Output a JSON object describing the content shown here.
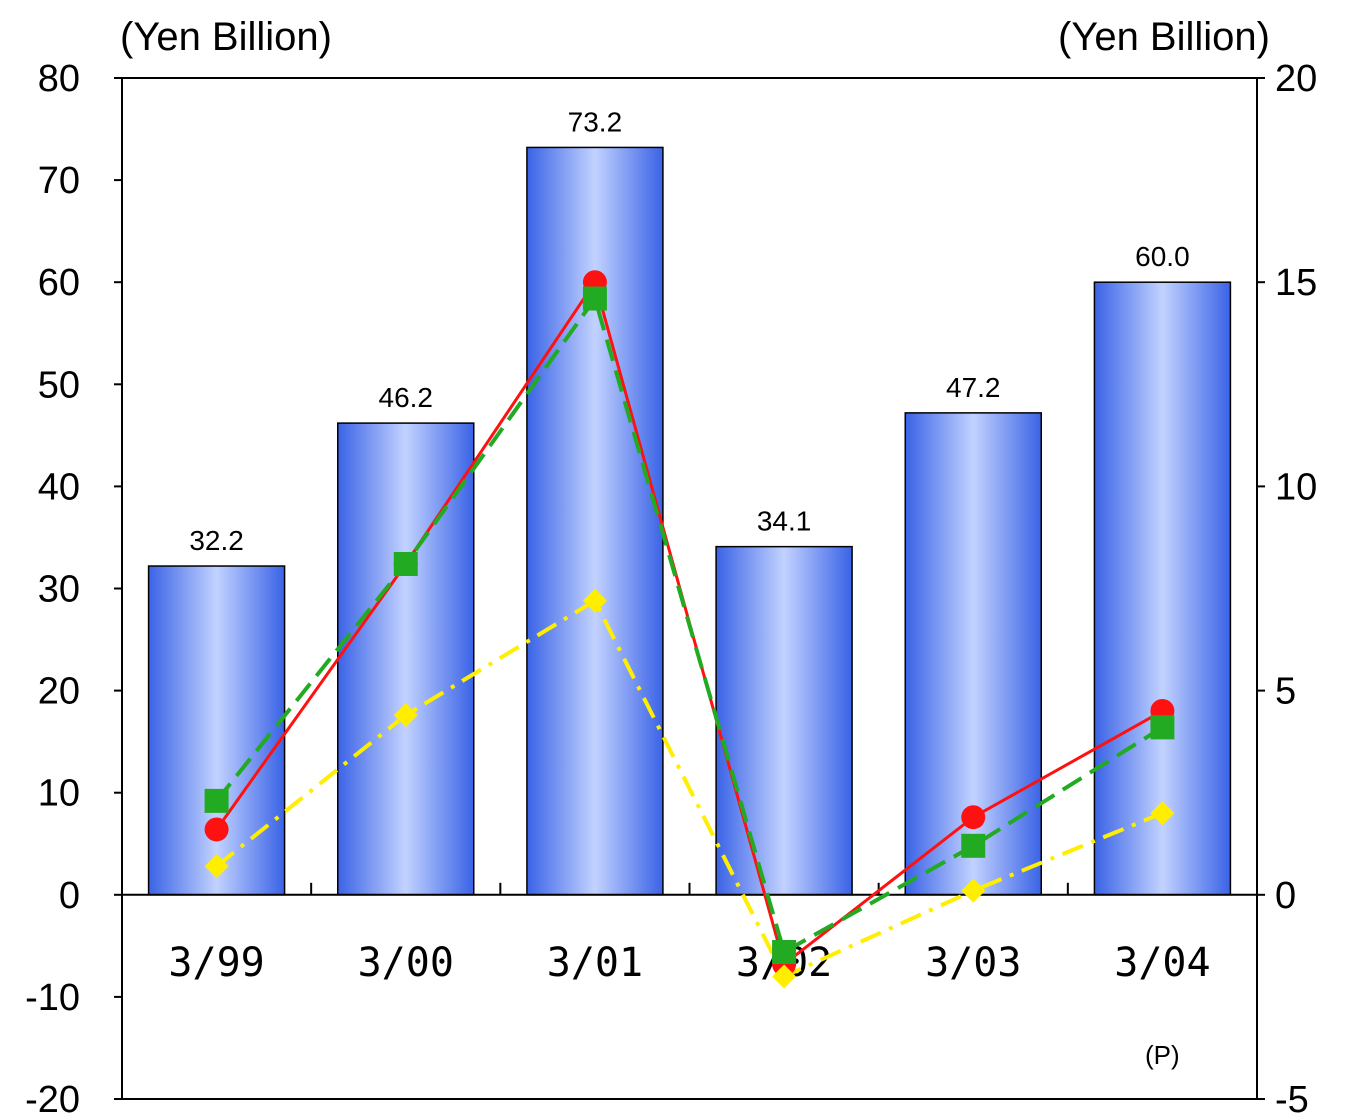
{
  "chart_data": {
    "type": "bar",
    "categories": [
      "3/99",
      "3/00",
      "3/01",
      "3/02",
      "3/03",
      "3/04"
    ],
    "left_axis": {
      "unit": "(Yen Billion)",
      "ylim": [
        -20,
        80
      ],
      "ticks": [
        "80",
        "70",
        "60",
        "50",
        "40",
        "30",
        "20",
        "10",
        "0",
        "-10",
        "-20"
      ]
    },
    "right_axis": {
      "unit": "(Yen Billion)",
      "ylim": [
        -5,
        20
      ],
      "ticks": [
        "20",
        "15",
        "10",
        "5",
        "0",
        "-5"
      ]
    },
    "bars": {
      "axis": "left",
      "values": [
        32.2,
        46.2,
        73.2,
        34.1,
        47.2,
        60.0
      ],
      "labels": [
        "32.2",
        "46.2",
        "73.2",
        "34.1",
        "47.2",
        "60.0"
      ],
      "color": "#3a63e6"
    },
    "lines": [
      {
        "axis": "right",
        "marker": "circle",
        "style": "solid",
        "color": "#ff1111",
        "values": [
          1.6,
          8.1,
          15.0,
          -1.7,
          1.9,
          4.5
        ]
      },
      {
        "axis": "right",
        "marker": "square",
        "style": "dashed",
        "color": "#22aa22",
        "values": [
          2.3,
          8.1,
          14.6,
          -1.4,
          1.2,
          4.1
        ]
      },
      {
        "axis": "right",
        "marker": "diamond",
        "style": "dash-dot",
        "color": "#ffee00",
        "values": [
          0.7,
          4.4,
          7.2,
          -2.0,
          0.1,
          2.0
        ]
      }
    ],
    "note": "(P)",
    "grid": false,
    "legend": "none"
  }
}
